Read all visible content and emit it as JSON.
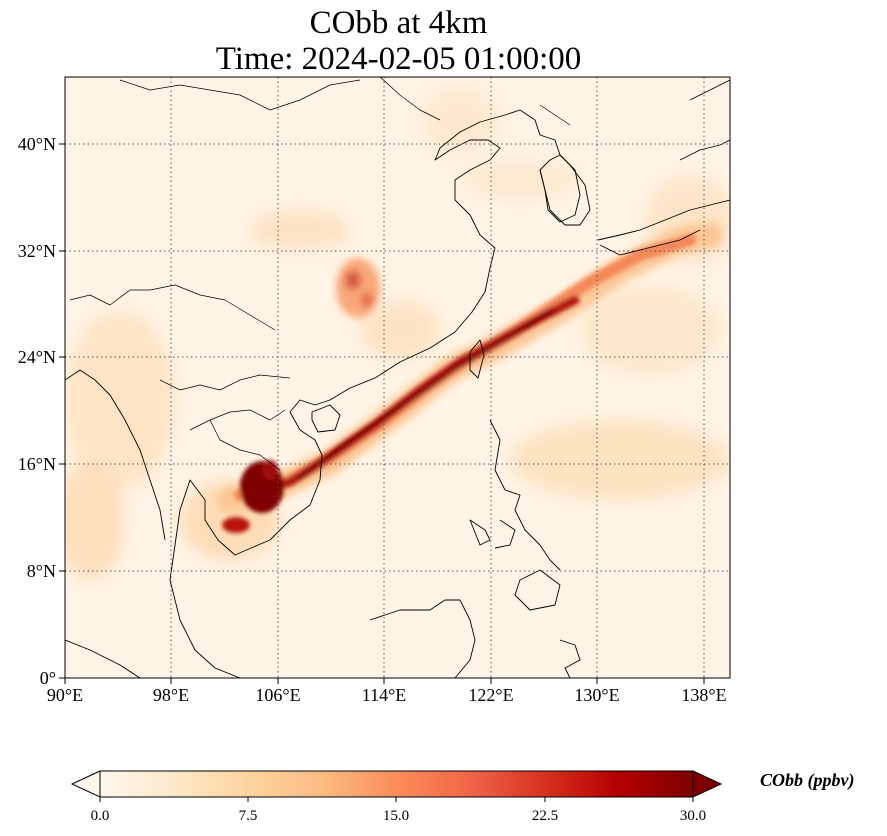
{
  "figure": {
    "title_line1": "CObb at 4km",
    "title_line2": "Time: 2024-02-05 01:00:00"
  },
  "map": {
    "lon_range": [
      90,
      140
    ],
    "lat_range": [
      0,
      44
    ],
    "lon_ticks": [
      "90°E",
      "98°E",
      "106°E",
      "114°E",
      "122°E",
      "130°E",
      "138°E"
    ],
    "lat_ticks": [
      "0°",
      "8°N",
      "16°N",
      "24°N",
      "32°N",
      "40°N"
    ],
    "gridlines": "dotted",
    "coastline_color": "#000000"
  },
  "colorbar": {
    "label": "CObb (ppbv)",
    "ticks": [
      "0.0",
      "7.5",
      "15.0",
      "22.5",
      "30.0"
    ],
    "range": [
      0,
      30
    ],
    "extend": "both",
    "colormap": [
      "#fff7ec",
      "#fee8c8",
      "#fdd49e",
      "#fdbb84",
      "#fc8d59",
      "#ef6548",
      "#d7301f",
      "#b30000",
      "#7f0000"
    ]
  }
}
